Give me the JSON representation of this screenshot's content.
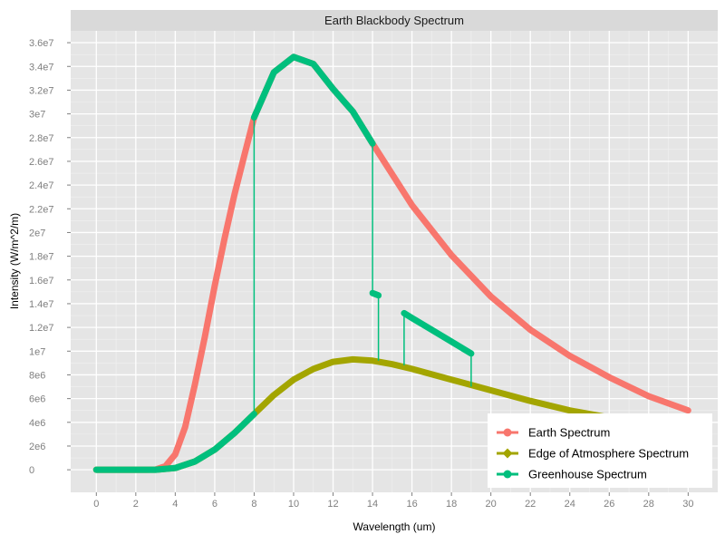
{
  "chart_data": {
    "type": "line",
    "title": "Earth Blackbody Spectrum",
    "xlabel": "Wavelength (um)",
    "ylabel": "Intensity (W/m^2/m)",
    "xlim": [
      -1.3,
      31.5
    ],
    "ylim": [
      -1900000.0,
      37000000.0
    ],
    "x_ticks": [
      0,
      2,
      4,
      6,
      8,
      10,
      12,
      14,
      16,
      18,
      20,
      22,
      24,
      26,
      28,
      30
    ],
    "x_tick_labels": [
      "0",
      "2",
      "4",
      "6",
      "8",
      "10",
      "12",
      "14",
      "16",
      "18",
      "20",
      "22",
      "24",
      "26",
      "28",
      "30"
    ],
    "y_ticks": [
      0,
      2000000.0,
      4000000.0,
      6000000.0,
      8000000.0,
      10000000.0,
      12000000.0,
      14000000.0,
      16000000.0,
      18000000.0,
      20000000.0,
      22000000.0,
      24000000.0,
      26000000.0,
      28000000.0,
      30000000.0,
      32000000.0,
      34000000.0,
      36000000.0
    ],
    "y_tick_labels": [
      "0",
      "2e6",
      "4e6",
      "6e6",
      "8e6",
      "1e7",
      "1.2e7",
      "1.4e7",
      "1.6e7",
      "1.8e7",
      "2e7",
      "2.2e7",
      "2.4e7",
      "2.6e7",
      "2.8e7",
      "3e7",
      "3.2e7",
      "3.4e7",
      "3.6e7"
    ],
    "grid": true,
    "legend_position": "bottom-right",
    "series": [
      {
        "name": "Earth Spectrum",
        "color": "#F8766D",
        "points": [
          [
            0,
            0
          ],
          [
            1,
            0
          ],
          [
            2,
            0
          ],
          [
            2.5,
            0
          ],
          [
            3,
            20000
          ],
          [
            3.5,
            300000
          ],
          [
            4,
            1300000
          ],
          [
            4.5,
            3600000
          ],
          [
            5,
            7200000
          ],
          [
            5.5,
            11200000
          ],
          [
            6,
            15500000
          ],
          [
            6.5,
            19500000
          ],
          [
            7,
            23200000
          ],
          [
            7.5,
            26500000
          ],
          [
            8,
            29700000
          ],
          [
            9,
            33500000
          ],
          [
            10,
            34800000
          ],
          [
            11,
            34200000
          ],
          [
            12,
            32100000
          ],
          [
            13,
            30200000
          ],
          [
            14,
            27500000
          ],
          [
            16,
            22300000
          ],
          [
            18,
            18100000
          ],
          [
            20,
            14600000
          ],
          [
            22,
            11800000
          ],
          [
            24,
            9600000
          ],
          [
            26,
            7800000
          ],
          [
            28,
            6200000
          ],
          [
            30,
            5000000
          ]
        ]
      },
      {
        "name": "Edge of Atmosphere Spectrum",
        "color": "#A3A500",
        "points": [
          [
            0,
            0
          ],
          [
            1,
            0
          ],
          [
            2,
            0
          ],
          [
            3,
            5000
          ],
          [
            4,
            150000
          ],
          [
            5,
            700000
          ],
          [
            6,
            1700000
          ],
          [
            7,
            3100000
          ],
          [
            8,
            4700000
          ],
          [
            9,
            6300000
          ],
          [
            10,
            7600000
          ],
          [
            11,
            8500000
          ],
          [
            12,
            9100000
          ],
          [
            13,
            9300000
          ],
          [
            14,
            9200000
          ],
          [
            15,
            8900000
          ],
          [
            16,
            8500000
          ],
          [
            18,
            7600000
          ],
          [
            20,
            6700000
          ],
          [
            22,
            5800000
          ],
          [
            24,
            5000000
          ],
          [
            26,
            4400000
          ],
          [
            28,
            3800000
          ],
          [
            30,
            3300000
          ]
        ]
      },
      {
        "name": "Greenhouse Spectrum",
        "color": "#00BF7D",
        "segments": [
          [
            [
              0,
              0
            ],
            [
              1,
              0
            ],
            [
              2,
              0
            ],
            [
              3,
              5000
            ],
            [
              4,
              150000
            ],
            [
              5,
              700000
            ],
            [
              6,
              1700000
            ],
            [
              7,
              3100000
            ],
            [
              8,
              4700000
            ]
          ],
          [
            [
              8,
              29700000
            ],
            [
              9,
              33500000
            ],
            [
              10,
              34800000
            ],
            [
              11,
              34200000
            ],
            [
              12,
              32100000
            ],
            [
              13,
              30200000
            ],
            [
              14,
              27500000
            ]
          ],
          [
            [
              14,
              14900000
            ],
            [
              14.3,
              14700000
            ]
          ],
          [
            [
              15.6,
              13200000
            ],
            [
              16,
              12800000
            ],
            [
              17,
              11800000
            ],
            [
              18,
              10800000
            ],
            [
              19,
              9800000
            ]
          ]
        ],
        "connectors": [
          [
            [
              8,
              4700000
            ],
            [
              8,
              29700000
            ]
          ],
          [
            [
              14,
              27500000
            ],
            [
              14,
              14900000
            ]
          ],
          [
            [
              14.3,
              14700000
            ],
            [
              14.3,
              9200000
            ]
          ],
          [
            [
              15.6,
              8800000
            ],
            [
              15.6,
              13200000
            ]
          ],
          [
            [
              19,
              9800000
            ],
            [
              19,
              7000000
            ]
          ]
        ]
      }
    ]
  }
}
